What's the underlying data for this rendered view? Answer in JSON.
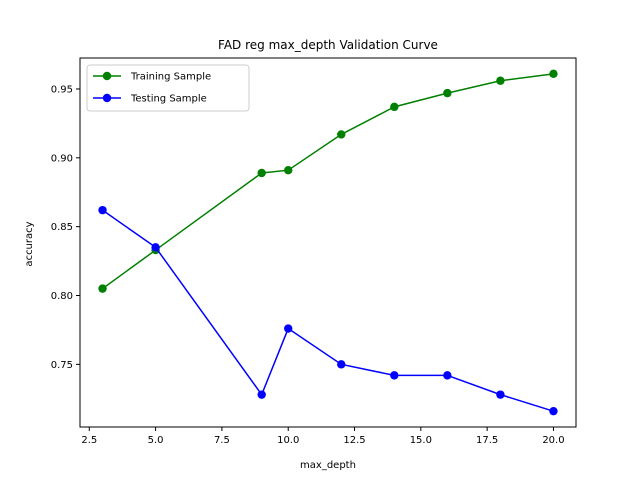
{
  "chart_data": {
    "type": "line",
    "title": "FAD reg max_depth Validation Curve",
    "xlabel": "max_depth",
    "ylabel": "accuracy",
    "xlim": [
      2.15,
      20.85
    ],
    "ylim": [
      0.7045,
      0.9725
    ],
    "xticks": [
      2.5,
      5.0,
      7.5,
      10.0,
      12.5,
      15.0,
      17.5,
      20.0
    ],
    "xtick_labels": [
      "2.5",
      "5.0",
      "7.5",
      "10.0",
      "12.5",
      "15.0",
      "17.5",
      "20.0"
    ],
    "yticks": [
      0.75,
      0.8,
      0.85,
      0.9,
      0.95
    ],
    "ytick_labels": [
      "0.75",
      "0.80",
      "0.85",
      "0.90",
      "0.95"
    ],
    "grid": false,
    "legend_position": "upper-left",
    "series": [
      {
        "name": "Training Sample",
        "color": "#008000",
        "marker": "circle",
        "x": [
          3,
          5,
          9,
          10,
          12,
          14,
          16,
          18,
          20
        ],
        "y": [
          0.805,
          0.833,
          0.889,
          0.891,
          0.917,
          0.937,
          0.947,
          0.956,
          0.961
        ]
      },
      {
        "name": "Testing Sample",
        "color": "#0000ff",
        "marker": "circle",
        "x": [
          3,
          5,
          9,
          10,
          12,
          14,
          16,
          18,
          20
        ],
        "y": [
          0.862,
          0.835,
          0.728,
          0.776,
          0.75,
          0.742,
          0.742,
          0.728,
          0.716
        ]
      }
    ]
  }
}
